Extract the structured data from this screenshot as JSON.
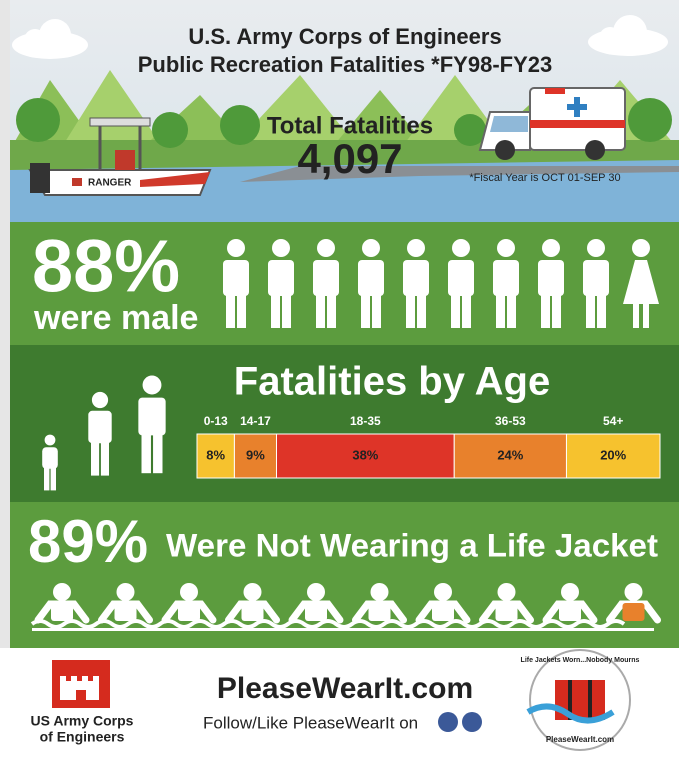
{
  "header": {
    "title_line1": "U.S. Army Corps of Engineers",
    "title_line2": "Public Recreation Fatalities *FY98-FY23",
    "total_label": "Total Fatalities",
    "total_value": "4,097",
    "fiscal_note": "*Fiscal Year is OCT 01-SEP 30",
    "boat_label": "RANGER"
  },
  "male": {
    "percent": "88%",
    "text": "were male"
  },
  "age": {
    "title": "Fatalities by Age",
    "categories": [
      "0-13",
      "14-17",
      "18-35",
      "36-53",
      "54+"
    ],
    "values": [
      8,
      9,
      38,
      24,
      20
    ],
    "value_labels": [
      "8%",
      "9%",
      "38%",
      "24%",
      "20%"
    ],
    "colors": [
      "#f6c22e",
      "#e8812c",
      "#de3428",
      "#e8812c",
      "#f6c22e"
    ]
  },
  "life_jacket": {
    "percent": "89%",
    "text": "Were Not Wearing a Life Jacket"
  },
  "footer": {
    "org_line1": "US Army Corps",
    "org_line2": "of Engineers",
    "website": "PleaseWearIt.com",
    "follow": "Follow/Like PleaseWearIt on",
    "badge_text": "Life Jackets Worn...Nobody Mourns",
    "badge_url": "PleaseWearIt.com"
  }
}
